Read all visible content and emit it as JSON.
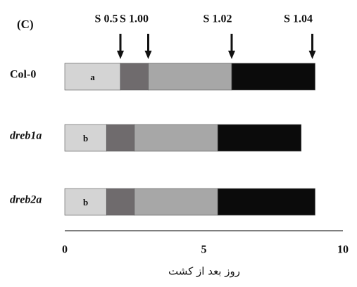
{
  "chart_data": {
    "type": "stacked-bar",
    "orientation": "horizontal",
    "panel_label": "(C)",
    "x_label": "روز بعد از کشت",
    "categories": [
      "Col-0",
      "dreb1a",
      "dreb2a"
    ],
    "category_italic": [
      false,
      true,
      true
    ],
    "letters": [
      "a",
      "b",
      "b"
    ],
    "series": [
      {
        "color": "#d4d4d4",
        "values": [
          2,
          1.5,
          1.5
        ]
      },
      {
        "color": "#6f6b6d",
        "values": [
          1,
          1,
          1
        ]
      },
      {
        "color": "#a7a7a7",
        "values": [
          3,
          3,
          3
        ]
      },
      {
        "color": "#0b0b0b",
        "values": [
          3,
          3,
          3.5
        ]
      }
    ],
    "stages": [
      {
        "label": "S 0.5",
        "value": 2
      },
      {
        "label": "S 1.00",
        "value": 3
      },
      {
        "label": "S 1.02",
        "value": 6
      },
      {
        "label": "S 1.04",
        "value": 8.9
      }
    ],
    "xlim": [
      0,
      10
    ],
    "xticks": [
      0,
      5,
      10
    ]
  }
}
